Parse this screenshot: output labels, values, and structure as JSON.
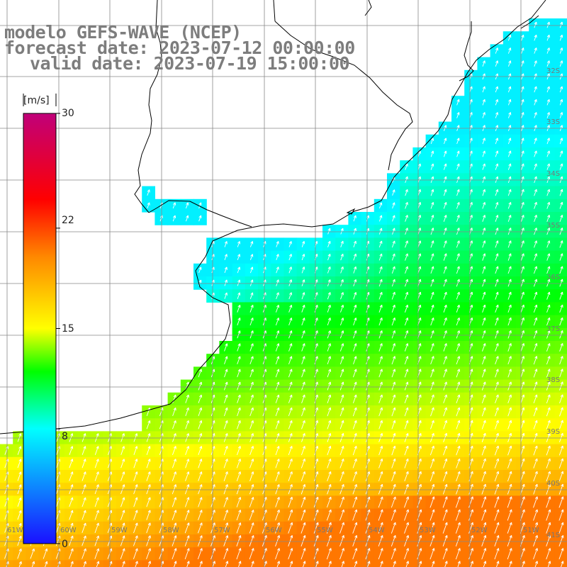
{
  "title": {
    "line1": "modelo GEFS-WAVE (NCEP)",
    "line2": "forecast date: 2023-07-12 00:00:00",
    "line3": "valid date: 2023-07-19 15:00:00"
  },
  "colorbar": {
    "unit": "[m/s]",
    "min": 0,
    "max": 30,
    "ticks": [
      "30",
      "22",
      "15",
      "8",
      "0"
    ],
    "tick_values": [
      30,
      22,
      15,
      8,
      0
    ],
    "stops": [
      "#1a10ff",
      "#00ffff",
      "#00ff00",
      "#ffff00",
      "#ff8800",
      "#ff0000",
      "#c0007a"
    ],
    "stop_values": [
      0,
      8,
      12,
      15,
      20,
      24,
      30
    ]
  },
  "map": {
    "lon_labels": [
      "61W",
      "60W",
      "59W",
      "58W",
      "57W",
      "56W",
      "55W",
      "54W",
      "53W",
      "52W",
      "51W"
    ],
    "lat_labels": [
      "32S",
      "33S",
      "34S",
      "35S",
      "36S",
      "37S",
      "38S",
      "39S",
      "40S",
      "41S"
    ],
    "wind_direction_deg": 200,
    "colors": {
      "land": "#ffffff",
      "grid": "#888888",
      "coast": "#000000",
      "arrows": "#ffffff"
    }
  }
}
